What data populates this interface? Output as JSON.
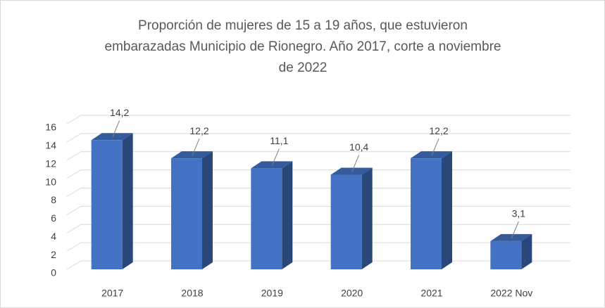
{
  "chart_data": {
    "type": "bar3d",
    "title": "Proporción de mujeres de 15 a 19 años, que estuvieron embarazadas Municipio de Rionegro. Año 2017, corte a noviembre de 2022",
    "categories": [
      "2017",
      "2018",
      "2019",
      "2020",
      "2021",
      "2022 Nov"
    ],
    "values": [
      14.2,
      12.2,
      11.1,
      10.4,
      12.2,
      3.1
    ],
    "value_labels": [
      "14,2",
      "12,2",
      "11,1",
      "10,4",
      "12,2",
      "3,1"
    ],
    "color": "#4472c4",
    "ylim": [
      0,
      16
    ],
    "yticks": [
      0,
      2,
      4,
      6,
      8,
      10,
      12,
      14,
      16
    ],
    "grid": true
  }
}
